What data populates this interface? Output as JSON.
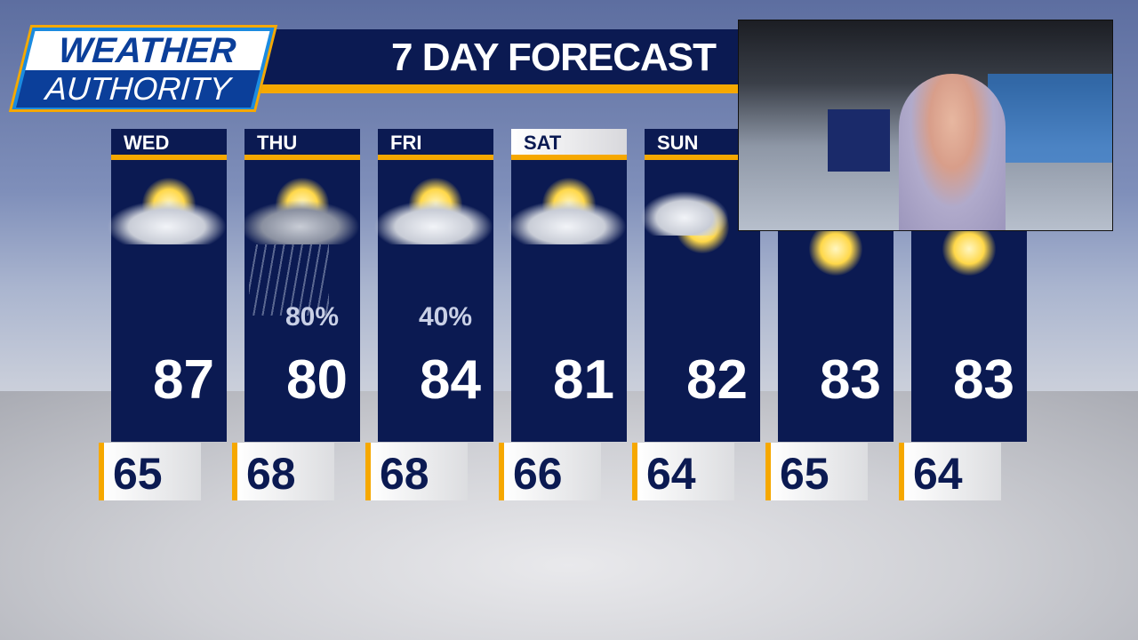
{
  "logo": {
    "line1": "WEATHER",
    "line2": "AUTHORITY"
  },
  "title": "7 DAY FORECAST",
  "colors": {
    "navy": "#0b1a52",
    "accent": "#f6a800",
    "logo_blue": "#1b8be0"
  },
  "days": [
    {
      "day": "WED",
      "icon": "partly-sunny-icon",
      "high": "87",
      "low": "65",
      "pop": ""
    },
    {
      "day": "THU",
      "icon": "rain-showers-icon",
      "high": "80",
      "low": "68",
      "pop": "80%"
    },
    {
      "day": "FRI",
      "icon": "partly-sunny-icon",
      "high": "84",
      "low": "68",
      "pop": "40%"
    },
    {
      "day": "SAT",
      "icon": "partly-sunny-icon",
      "high": "81",
      "low": "66",
      "pop": ""
    },
    {
      "day": "SUN",
      "icon": "mostly-sunny-icon",
      "high": "82",
      "low": "64",
      "pop": ""
    },
    {
      "day": "",
      "icon": "sunny-icon",
      "high": "83",
      "low": "65",
      "pop": ""
    },
    {
      "day": "",
      "icon": "sunny-icon",
      "high": "83",
      "low": "64",
      "pop": ""
    }
  ]
}
